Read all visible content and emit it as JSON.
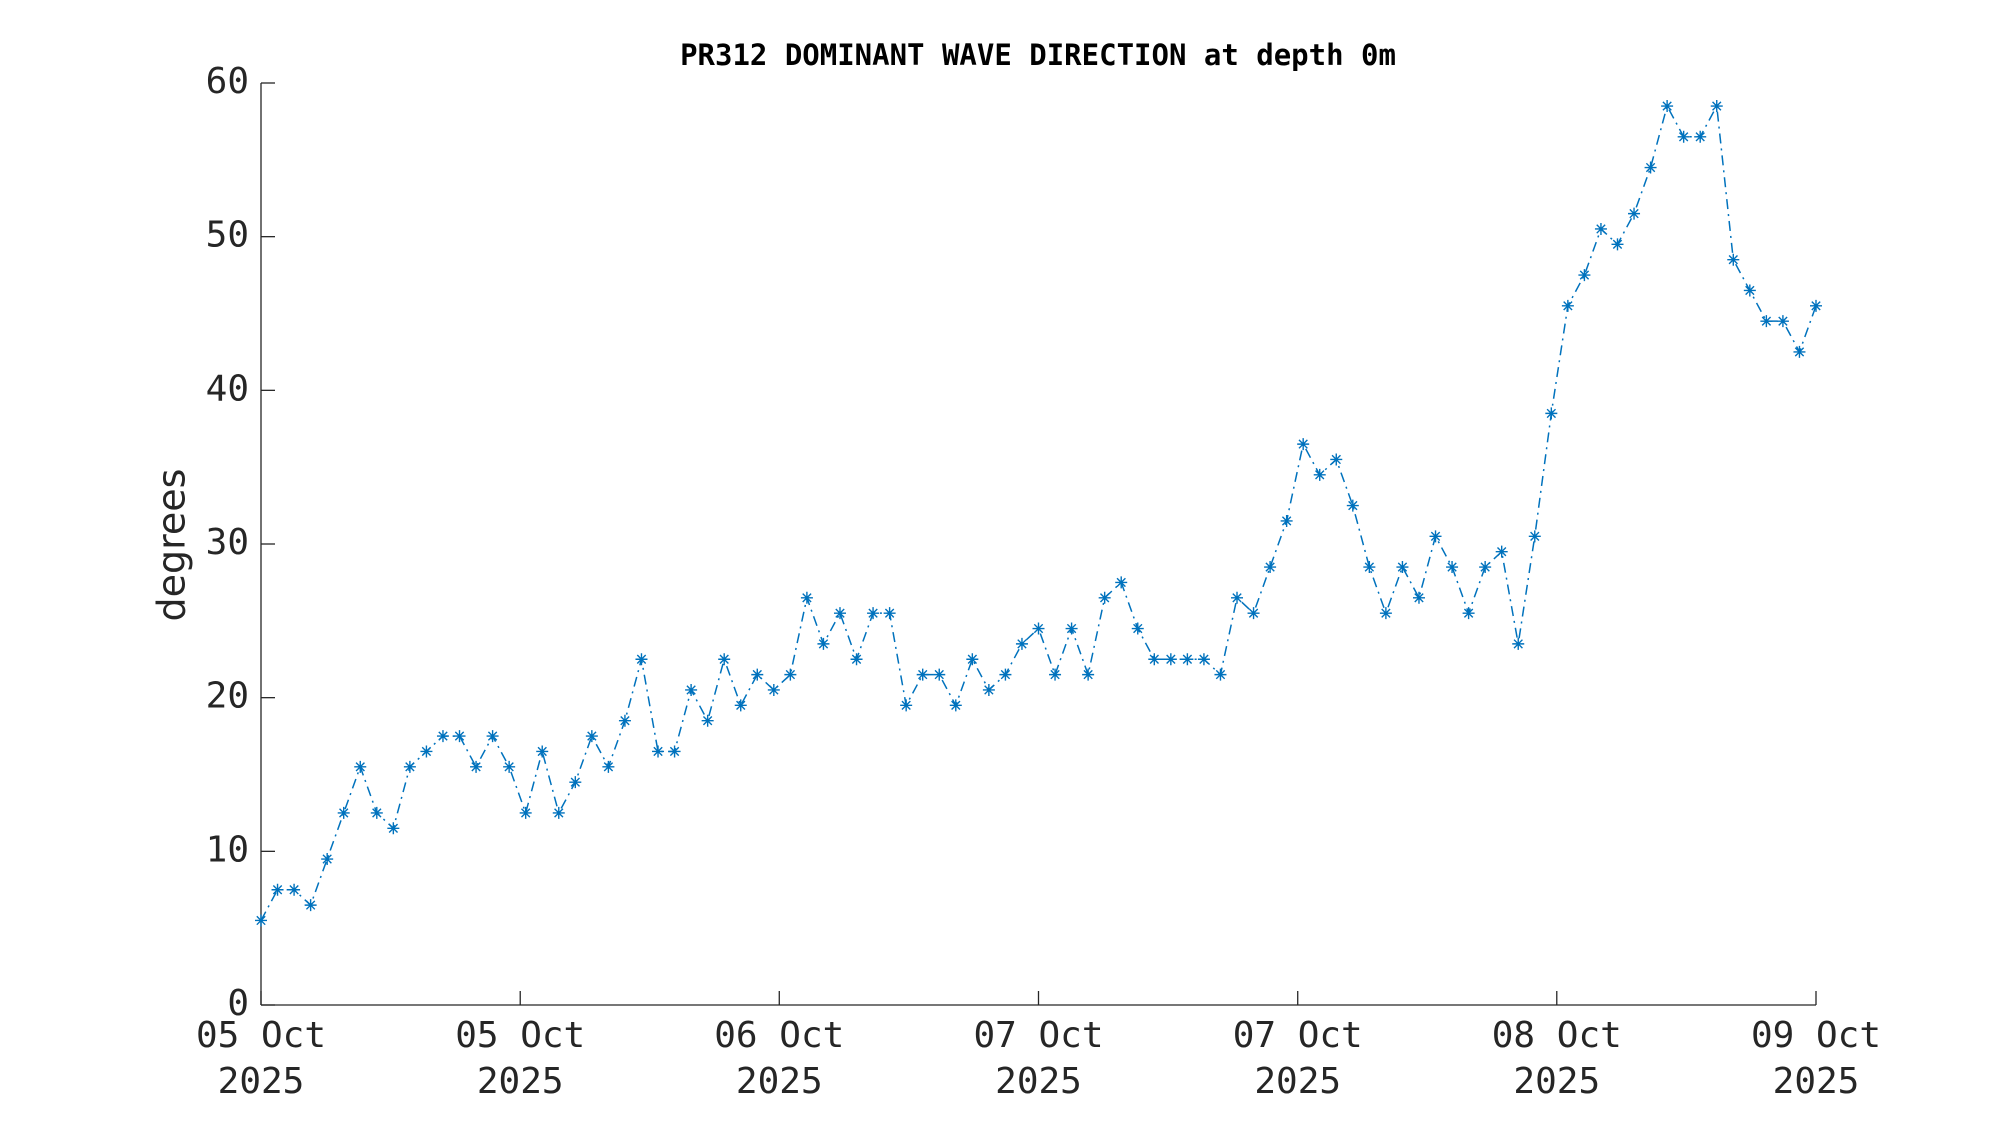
{
  "chart_data": {
    "type": "line",
    "title": "PR312 DOMINANT WAVE DIRECTION at depth 0m",
    "y_label": "degrees",
    "series": [
      {
        "color": "#0072bd",
        "values": [
          5.5,
          7.5,
          7.5,
          6.5,
          9.5,
          12.5,
          15.5,
          12.5,
          11.5,
          15.5,
          16.5,
          17.5,
          17.5,
          15.5,
          17.5,
          15.5,
          12.5,
          16.5,
          12.5,
          14.5,
          17.5,
          15.5,
          18.5,
          22.5,
          16.5,
          16.5,
          20.5,
          18.5,
          22.5,
          19.5,
          21.5,
          20.5,
          21.5,
          26.5,
          23.5,
          25.5,
          22.5,
          25.5,
          25.5,
          19.5,
          21.5,
          21.5,
          19.5,
          22.5,
          20.5,
          21.5,
          23.5,
          24.5,
          21.5,
          24.5,
          21.5,
          26.5,
          27.5,
          24.5,
          22.5,
          22.5,
          22.5,
          22.5,
          21.5,
          26.5,
          25.5,
          28.5,
          31.5,
          36.5,
          34.5,
          35.5,
          32.5,
          28.5,
          25.5,
          28.5,
          26.5,
          30.5,
          28.5,
          25.5,
          28.5,
          29.5,
          23.5,
          30.5,
          38.5,
          45.5,
          47.5,
          50.5,
          49.5,
          51.5,
          54.5,
          58.5,
          56.5,
          56.5,
          58.5,
          48.5,
          46.5,
          44.5,
          44.5,
          42.5,
          45.5
        ]
      }
    ],
    "xlim": [
      0,
      94
    ],
    "xticks": [
      {
        "value": 0,
        "label": [
          "05 Oct",
          "2025"
        ]
      },
      {
        "value": 15.67,
        "label": [
          "05 Oct",
          "2025"
        ]
      },
      {
        "value": 31.33,
        "label": [
          "06 Oct",
          "2025"
        ]
      },
      {
        "value": 47,
        "label": [
          "07 Oct",
          "2025"
        ]
      },
      {
        "value": 62.67,
        "label": [
          "07 Oct",
          "2025"
        ]
      },
      {
        "value": 78.33,
        "label": [
          "08 Oct",
          "2025"
        ]
      },
      {
        "value": 94,
        "label": [
          "09 Oct",
          "2025"
        ]
      }
    ],
    "ylim": [
      0,
      60
    ],
    "yticks": [
      0,
      10,
      20,
      30,
      40,
      50,
      60
    ],
    "grid": false
  }
}
